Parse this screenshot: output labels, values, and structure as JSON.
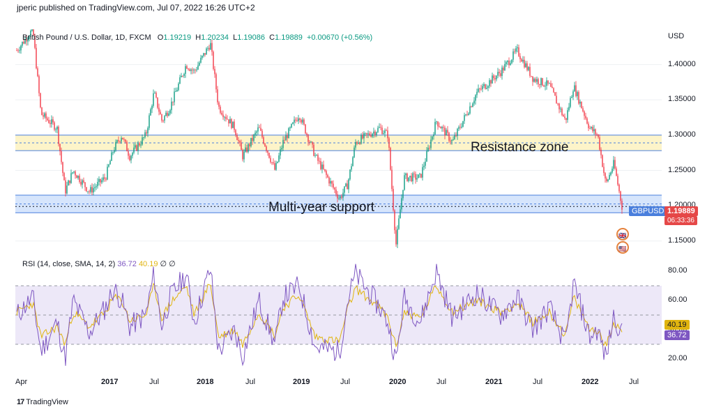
{
  "header": {
    "publisher": "jperic published on TradingView.com, Jul 07, 2022 16:26 UTC+2"
  },
  "legend": {
    "symbol": "British Pound / U.S. Dollar, 1D, FXCM",
    "open_label": "O",
    "open": "1.19219",
    "high_label": "H",
    "high": "1.20234",
    "low_label": "L",
    "low": "1.19086",
    "close_label": "C",
    "close": "1.19889",
    "change": "+0.00670 (+0.56%)"
  },
  "price_axis": {
    "currency": "USD",
    "tag_symbol": "GBPUSD",
    "tag_price": "1.19889",
    "tag_timer": "06:33:36"
  },
  "rsi": {
    "label": "RSI (14, close, SMA, 14, 2)",
    "rsi_value": "36.72",
    "sma_value": "40.19",
    "extra": "∅ ∅"
  },
  "annotations": {
    "resistance": "Resistance zone",
    "support": "Multi-year support"
  },
  "footer": {
    "brand": "TradingView",
    "brand_icon": "17"
  },
  "colors": {
    "up": "#089981",
    "down": "#f23645",
    "rsi": "#7e57c2",
    "rsi_sma": "#e0b40f",
    "resistance_fill": "#fdf2c0",
    "support_fill": "#cfe0fb",
    "zone_border": "#4a7fdd"
  },
  "chart_data": [
    {
      "type": "candlestick",
      "title": "British Pound / U.S. Dollar, 1D, FXCM",
      "ylabel": "USD",
      "ylim": [
        1.13,
        1.45
      ],
      "y_ticks": [
        1.15,
        1.2,
        1.25,
        1.3,
        1.35,
        1.4
      ],
      "x_ticks": [
        "Apr",
        "2017",
        "Jul",
        "2018",
        "Jul",
        "2019",
        "Jul",
        "2020",
        "Jul",
        "2021",
        "Jul",
        "2022",
        "Jul"
      ],
      "zones": [
        {
          "label": "Resistance zone",
          "from": 1.278,
          "to": 1.3
        },
        {
          "label": "Multi-year support",
          "from": 1.19,
          "to": 1.215
        }
      ],
      "last_price": 1.19889,
      "series": [
        {
          "values": [
            {
              "t": "Apr 2016",
              "v": 1.42
            },
            {
              "t": "Jun 2016",
              "v": 1.45
            },
            {
              "t": "Jul 2016",
              "v": 1.33
            },
            {
              "t": "Sep 2016",
              "v": 1.31
            },
            {
              "t": "Oct 2016",
              "v": 1.22
            },
            {
              "t": "Nov 2016",
              "v": 1.25
            },
            {
              "t": "Jan 2017",
              "v": 1.22
            },
            {
              "t": "Mar 2017",
              "v": 1.24
            },
            {
              "t": "Apr 2017",
              "v": 1.28
            },
            {
              "t": "May 2017",
              "v": 1.3
            },
            {
              "t": "Jun 2017",
              "v": 1.27
            },
            {
              "t": "Aug 2017",
              "v": 1.3
            },
            {
              "t": "Sep 2017",
              "v": 1.36
            },
            {
              "t": "Oct 2017",
              "v": 1.32
            },
            {
              "t": "Nov 2017",
              "v": 1.34
            },
            {
              "t": "Jan 2018",
              "v": 1.4
            },
            {
              "t": "Feb 2018",
              "v": 1.39
            },
            {
              "t": "Apr 2018",
              "v": 1.43
            },
            {
              "t": "May 2018",
              "v": 1.34
            },
            {
              "t": "Jul 2018",
              "v": 1.31
            },
            {
              "t": "Aug 2018",
              "v": 1.27
            },
            {
              "t": "Oct 2018",
              "v": 1.31
            },
            {
              "t": "Dec 2018",
              "v": 1.25
            },
            {
              "t": "Jan 2019",
              "v": 1.29
            },
            {
              "t": "Mar 2019",
              "v": 1.33
            },
            {
              "t": "May 2019",
              "v": 1.27
            },
            {
              "t": "Aug 2019",
              "v": 1.21
            },
            {
              "t": "Sep 2019",
              "v": 1.23
            },
            {
              "t": "Oct 2019",
              "v": 1.29
            },
            {
              "t": "Jan 2020",
              "v": 1.31
            },
            {
              "t": "Feb 2020",
              "v": 1.3
            },
            {
              "t": "Mar 2020",
              "v": 1.145
            },
            {
              "t": "Apr 2020",
              "v": 1.24
            },
            {
              "t": "Jun 2020",
              "v": 1.24
            },
            {
              "t": "Aug 2020",
              "v": 1.32
            },
            {
              "t": "Oct 2020",
              "v": 1.29
            },
            {
              "t": "Jan 2021",
              "v": 1.36
            },
            {
              "t": "Apr 2021",
              "v": 1.39
            },
            {
              "t": "Jun 2021",
              "v": 1.42
            },
            {
              "t": "Aug 2021",
              "v": 1.38
            },
            {
              "t": "Oct 2021",
              "v": 1.37
            },
            {
              "t": "Dec 2021",
              "v": 1.32
            },
            {
              "t": "Jan 2022",
              "v": 1.37
            },
            {
              "t": "Mar 2022",
              "v": 1.31
            },
            {
              "t": "Apr 2022",
              "v": 1.3
            },
            {
              "t": "May 2022",
              "v": 1.23
            },
            {
              "t": "Jun 2022",
              "v": 1.26
            },
            {
              "t": "Jul 2022",
              "v": 1.19889
            }
          ]
        }
      ]
    },
    {
      "type": "line",
      "title": "RSI (14, close, SMA, 14, 2)",
      "ylim": [
        10,
        90
      ],
      "y_ticks": [
        20,
        40,
        60,
        80
      ],
      "bands": [
        30,
        50,
        70
      ],
      "last_values": {
        "RSI": 36.72,
        "SMA": 40.19
      },
      "series": [
        {
          "values": [
            {
              "t": "Apr 2016",
              "v": 50
            },
            {
              "t": "Jun 2016",
              "v": 62
            },
            {
              "t": "Jul 2016",
              "v": 25
            },
            {
              "t": "Sep 2016",
              "v": 45
            },
            {
              "t": "Oct 2016",
              "v": 20
            },
            {
              "t": "Nov 2016",
              "v": 60
            },
            {
              "t": "Jan 2017",
              "v": 38
            },
            {
              "t": "Mar 2017",
              "v": 55
            },
            {
              "t": "Apr 2017",
              "v": 68
            },
            {
              "t": "May 2017",
              "v": 60
            },
            {
              "t": "Jun 2017",
              "v": 42
            },
            {
              "t": "Aug 2017",
              "v": 50
            },
            {
              "t": "Sep 2017",
              "v": 78
            },
            {
              "t": "Oct 2017",
              "v": 42
            },
            {
              "t": "Nov 2017",
              "v": 62
            },
            {
              "t": "Jan 2018",
              "v": 78
            },
            {
              "t": "Feb 2018",
              "v": 45
            },
            {
              "t": "Apr 2018",
              "v": 82
            },
            {
              "t": "May 2018",
              "v": 25
            },
            {
              "t": "Jul 2018",
              "v": 40
            },
            {
              "t": "Aug 2018",
              "v": 22
            },
            {
              "t": "Oct 2018",
              "v": 60
            },
            {
              "t": "Dec 2018",
              "v": 30
            },
            {
              "t": "Jan 2019",
              "v": 62
            },
            {
              "t": "Mar 2019",
              "v": 70
            },
            {
              "t": "May 2019",
              "v": 28
            },
            {
              "t": "Aug 2019",
              "v": 25
            },
            {
              "t": "Sep 2019",
              "v": 60
            },
            {
              "t": "Oct 2019",
              "v": 78
            },
            {
              "t": "Jan 2020",
              "v": 55
            },
            {
              "t": "Feb 2020",
              "v": 45
            },
            {
              "t": "Mar 2020",
              "v": 18
            },
            {
              "t": "Apr 2020",
              "v": 62
            },
            {
              "t": "Jun 2020",
              "v": 45
            },
            {
              "t": "Aug 2020",
              "v": 80
            },
            {
              "t": "Oct 2020",
              "v": 48
            },
            {
              "t": "Jan 2021",
              "v": 65
            },
            {
              "t": "Apr 2021",
              "v": 50
            },
            {
              "t": "Jun 2021",
              "v": 62
            },
            {
              "t": "Aug 2021",
              "v": 40
            },
            {
              "t": "Oct 2021",
              "v": 55
            },
            {
              "t": "Dec 2021",
              "v": 30
            },
            {
              "t": "Jan 2022",
              "v": 72
            },
            {
              "t": "Mar 2022",
              "v": 35
            },
            {
              "t": "Apr 2022",
              "v": 40
            },
            {
              "t": "May 2022",
              "v": 20
            },
            {
              "t": "Jun 2022",
              "v": 50
            },
            {
              "t": "Jul 2022",
              "v": 36.72
            }
          ]
        },
        {
          "values": [
            {
              "t": "Apr 2016",
              "v": 52
            },
            {
              "t": "Jun 2016",
              "v": 58
            },
            {
              "t": "Jul 2016",
              "v": 35
            },
            {
              "t": "Sep 2016",
              "v": 42
            },
            {
              "t": "Oct 2016",
              "v": 30
            },
            {
              "t": "Nov 2016",
              "v": 52
            },
            {
              "t": "Jan 2017",
              "v": 42
            },
            {
              "t": "Mar 2017",
              "v": 52
            },
            {
              "t": "Apr 2017",
              "v": 62
            },
            {
              "t": "May 2017",
              "v": 60
            },
            {
              "t": "Jun 2017",
              "v": 46
            },
            {
              "t": "Aug 2017",
              "v": 50
            },
            {
              "t": "Sep 2017",
              "v": 70
            },
            {
              "t": "Oct 2017",
              "v": 48
            },
            {
              "t": "Nov 2017",
              "v": 58
            },
            {
              "t": "Jan 2018",
              "v": 70
            },
            {
              "t": "Feb 2018",
              "v": 50
            },
            {
              "t": "Apr 2018",
              "v": 72
            },
            {
              "t": "May 2018",
              "v": 35
            },
            {
              "t": "Jul 2018",
              "v": 40
            },
            {
              "t": "Aug 2018",
              "v": 30
            },
            {
              "t": "Oct 2018",
              "v": 52
            },
            {
              "t": "Dec 2018",
              "v": 36
            },
            {
              "t": "Jan 2019",
              "v": 55
            },
            {
              "t": "Mar 2019",
              "v": 64
            },
            {
              "t": "May 2019",
              "v": 35
            },
            {
              "t": "Aug 2019",
              "v": 32
            },
            {
              "t": "Sep 2019",
              "v": 54
            },
            {
              "t": "Oct 2019",
              "v": 68
            },
            {
              "t": "Jan 2020",
              "v": 55
            },
            {
              "t": "Feb 2020",
              "v": 48
            },
            {
              "t": "Mar 2020",
              "v": 28
            },
            {
              "t": "Apr 2020",
              "v": 52
            },
            {
              "t": "Jun 2020",
              "v": 48
            },
            {
              "t": "Aug 2020",
              "v": 70
            },
            {
              "t": "Oct 2020",
              "v": 52
            },
            {
              "t": "Jan 2021",
              "v": 60
            },
            {
              "t": "Apr 2021",
              "v": 52
            },
            {
              "t": "Jun 2021",
              "v": 58
            },
            {
              "t": "Aug 2021",
              "v": 45
            },
            {
              "t": "Oct 2021",
              "v": 52
            },
            {
              "t": "Dec 2021",
              "v": 36
            },
            {
              "t": "Jan 2022",
              "v": 62
            },
            {
              "t": "Mar 2022",
              "v": 40
            },
            {
              "t": "Apr 2022",
              "v": 40
            },
            {
              "t": "May 2022",
              "v": 28
            },
            {
              "t": "Jun 2022",
              "v": 45
            },
            {
              "t": "Jul 2022",
              "v": 40.19
            }
          ]
        }
      ]
    }
  ]
}
